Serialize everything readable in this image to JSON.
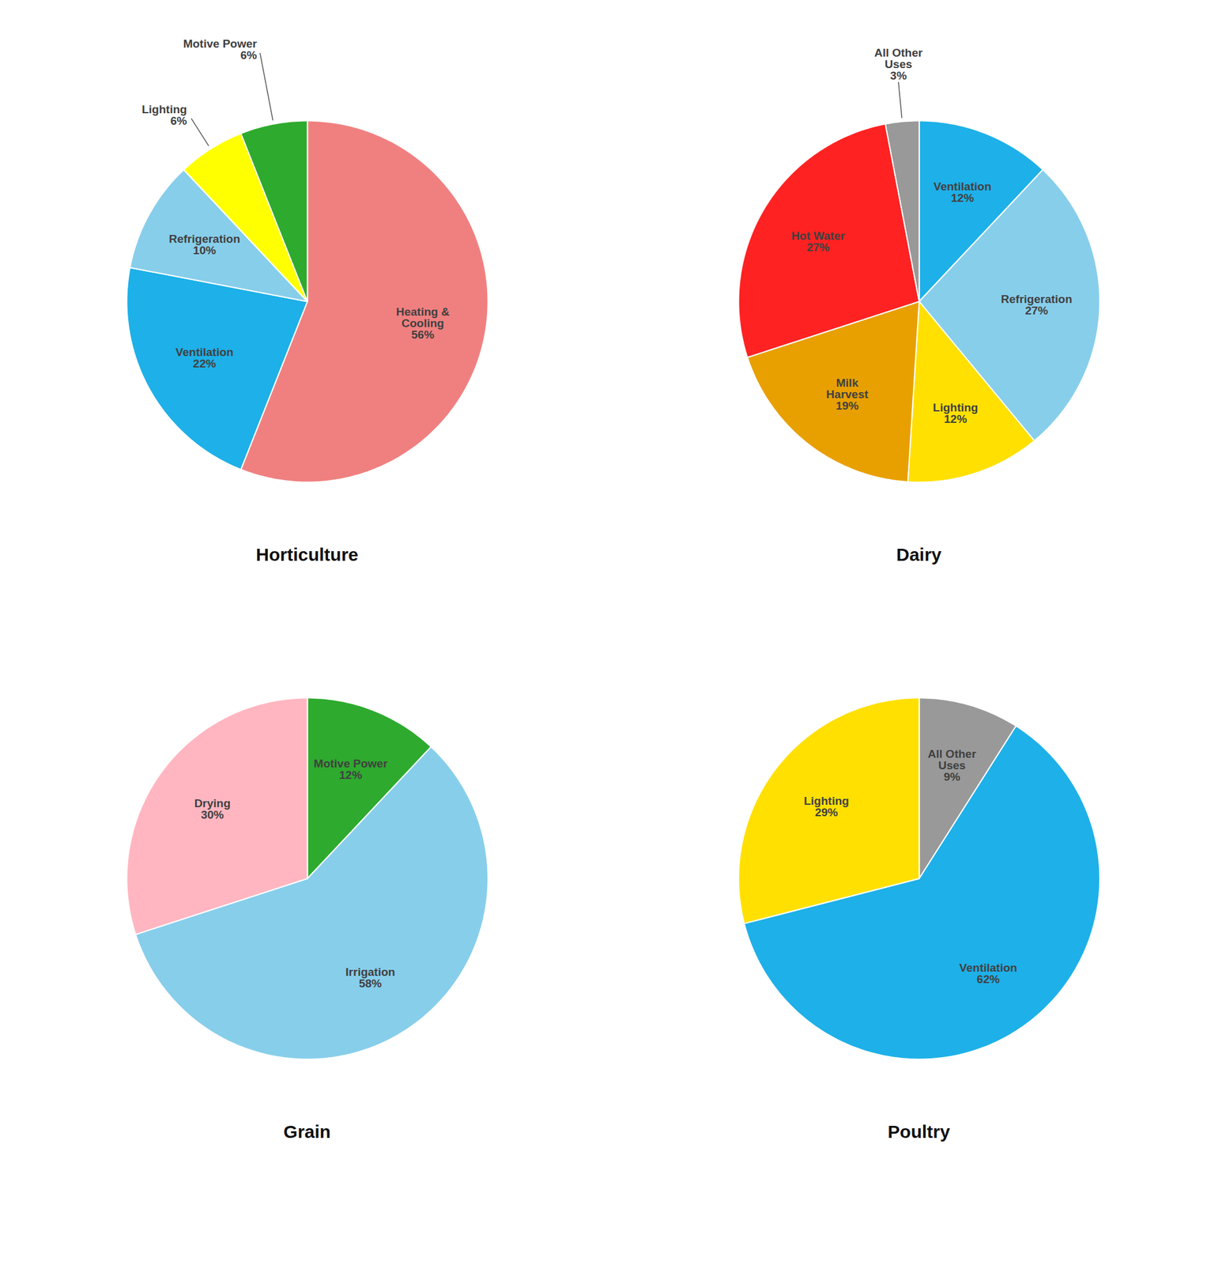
{
  "chart_data": [
    {
      "type": "pie",
      "title": "Horticulture",
      "categories": [
        "Heating &\nCooling",
        "Ventilation",
        "Refrigeration",
        "Lighting",
        "Motive Power"
      ],
      "values": [
        56,
        22,
        10,
        6,
        6
      ],
      "value_labels": [
        "56%",
        "22%",
        "10%",
        "6%",
        "6%"
      ],
      "colors": [
        "#F08080",
        "#1EB0E8",
        "#87CEEB",
        "#FFFF00",
        "#2EAA2E"
      ],
      "data_labels": true
    },
    {
      "type": "pie",
      "title": "Dairy",
      "categories": [
        "Ventilation",
        "Refrigeration",
        "Lighting",
        "Milk\nHarvest",
        "Hot Water",
        "All Other\nUses"
      ],
      "values": [
        12,
        27,
        12,
        19,
        27,
        3
      ],
      "value_labels": [
        "12%",
        "27%",
        "12%",
        "19%",
        "27%",
        "3%"
      ],
      "colors": [
        "#1EB0E8",
        "#87CEEB",
        "#FFE000",
        "#E8A000",
        "#FF2222",
        "#999999"
      ],
      "data_labels": true
    },
    {
      "type": "pie",
      "title": "Grain",
      "categories": [
        "Motive Power",
        "Irrigation",
        "Drying"
      ],
      "values": [
        12,
        58,
        30
      ],
      "value_labels": [
        "12%",
        "58%",
        "30%"
      ],
      "colors": [
        "#2EAA2E",
        "#87CEEB",
        "#FFB6C1"
      ],
      "data_labels": true
    },
    {
      "type": "pie",
      "title": "Poultry",
      "categories": [
        "All Other\nUses",
        "Ventilation",
        "Lighting"
      ],
      "values": [
        9,
        62,
        29
      ],
      "value_labels": [
        "9%",
        "62%",
        "29%"
      ],
      "colors": [
        "#999999",
        "#1EB0E8",
        "#FFE000"
      ],
      "data_labels": true
    }
  ]
}
